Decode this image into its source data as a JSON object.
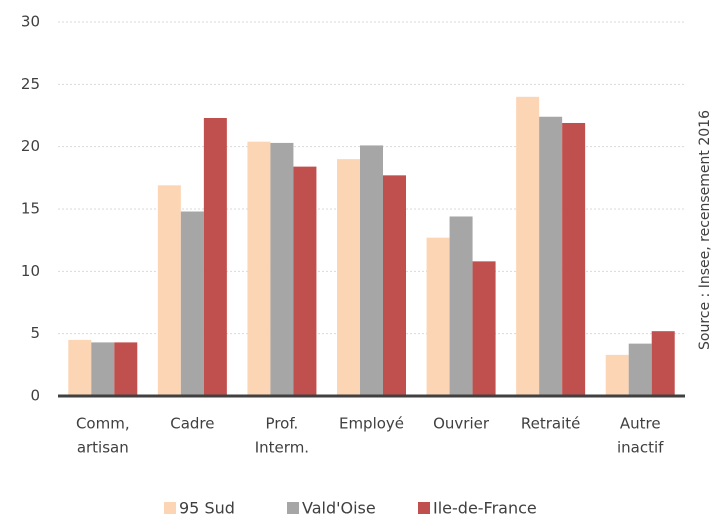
{
  "chart_data": {
    "type": "bar",
    "categories": [
      [
        "Comm,",
        "artisan"
      ],
      [
        "Cadre"
      ],
      [
        "Prof.",
        "Interm."
      ],
      [
        "Employé"
      ],
      [
        "Ouvrier"
      ],
      [
        "Retraité"
      ],
      [
        "Autre",
        "inactif"
      ]
    ],
    "series": [
      {
        "name": "95 Sud",
        "color": "#fcd5b5",
        "values": [
          4.5,
          16.9,
          20.4,
          19.0,
          12.7,
          24.0,
          3.3
        ]
      },
      {
        "name": "Vald'Oise",
        "color": "#a6a6a6",
        "values": [
          4.3,
          14.8,
          20.3,
          20.1,
          14.4,
          22.4,
          4.2
        ]
      },
      {
        "name": "Ile-de-France",
        "color": "#c0504d",
        "values": [
          4.3,
          22.3,
          18.4,
          17.7,
          10.8,
          21.9,
          5.2
        ]
      }
    ],
    "ylim": [
      0,
      30
    ],
    "yticks": [
      0,
      5,
      10,
      15,
      20,
      25,
      30
    ],
    "grid": true,
    "legend": "bottom",
    "source": "Source : Insee, recensement 2016"
  }
}
